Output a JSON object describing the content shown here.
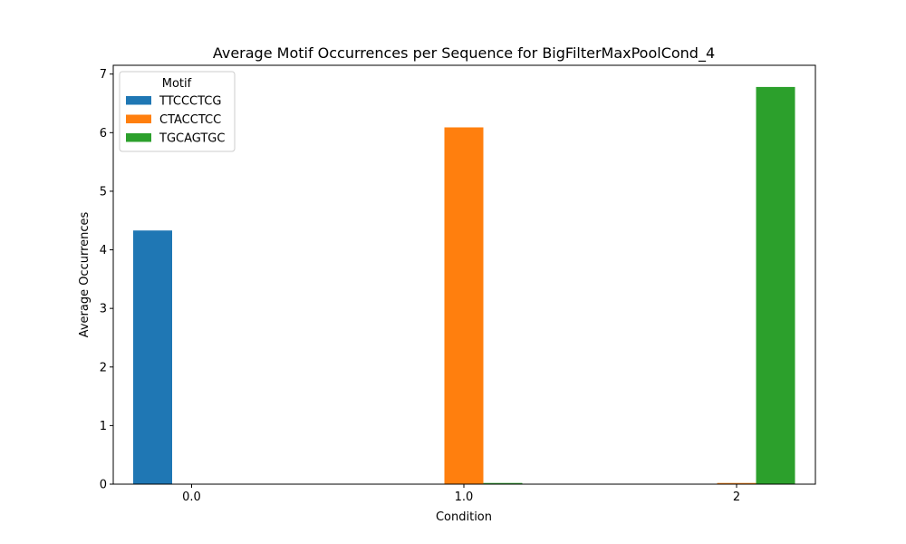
{
  "chart_data": {
    "type": "bar",
    "title": "Average Motif Occurrences per Sequence for BigFilterMaxPoolCond_4",
    "xlabel": "Condition",
    "ylabel": "Average Occurrences",
    "categories": [
      "0.0",
      "1.0",
      "2"
    ],
    "ylim": [
      0,
      7.15
    ],
    "yticks": [
      0,
      1,
      2,
      3,
      4,
      5,
      6,
      7
    ],
    "grid": false,
    "legend": {
      "title": "Motif",
      "position": "top-left"
    },
    "series": [
      {
        "name": "TTCCCTCG",
        "color": "#1f77b4",
        "values": [
          4.33,
          0.0,
          0.0
        ]
      },
      {
        "name": "CTACCTCC",
        "color": "#ff7f0e",
        "values": [
          0.0,
          6.09,
          0.02
        ]
      },
      {
        "name": "TGCAGTGC",
        "color": "#2ca02c",
        "values": [
          0.0,
          0.02,
          6.78
        ]
      }
    ]
  }
}
